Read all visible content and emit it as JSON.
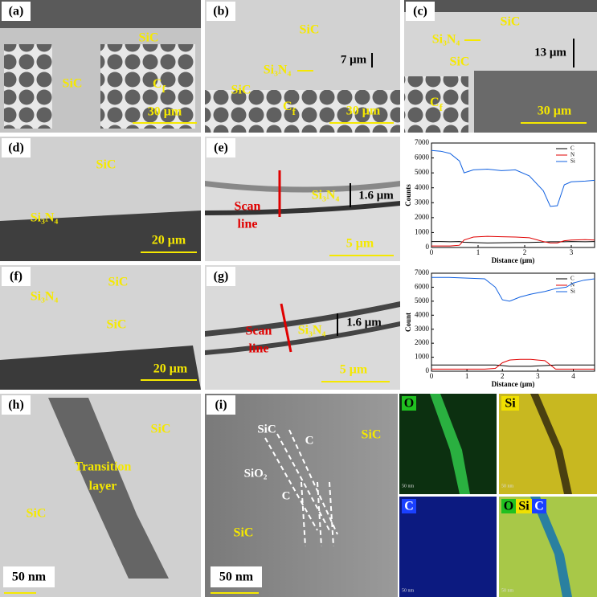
{
  "panels": {
    "a": {
      "label": "(a)",
      "sic_top": "SiC",
      "sic_left": "SiC",
      "cf": "C",
      "cf_sub": "f",
      "scale": "30 μm"
    },
    "b": {
      "label": "(b)",
      "sic": "SiC",
      "si3n4": "Si₃N₄",
      "thickness": "7 μm",
      "sic_left": "SiC",
      "cf": "C",
      "cf_sub": "f",
      "scale": "30 μm"
    },
    "c": {
      "label": "(c)",
      "sic_top": "SiC",
      "si3n4": "Si₃N₄",
      "sic": "SiC",
      "thickness": "13 μm",
      "cf": "C",
      "cf_sub": "f",
      "scale": "30 μm"
    },
    "d": {
      "label": "(d)",
      "sic": "SiC",
      "si3n4": "Si₃N₄",
      "scale": "20 μm"
    },
    "e": {
      "label": "(e)",
      "scan": "Scan",
      "line": "line",
      "si3n4": "Si₃N₄",
      "thickness": "1.6 μm",
      "scale": "5 μm"
    },
    "f": {
      "label": "(f)",
      "si3n4": "Si₃N₄",
      "sic_top": "SiC",
      "sic": "SiC",
      "scale": "20 μm"
    },
    "g": {
      "label": "(g)",
      "scan": "Scan",
      "line": "line",
      "si3n4": "Si₃N₄",
      "thickness": "1.6 μm",
      "scale": "5 μm"
    },
    "h": {
      "label": "(h)",
      "sic_right": "SiC",
      "transition": "Transition",
      "layer": "layer",
      "sic_left": "SiC",
      "scale": "50 nm"
    },
    "i": {
      "label": "(i)",
      "sic_top_left": "SiC",
      "c_top": "C",
      "sic_right": "SiC",
      "sio2": "SiO₂",
      "c_bottom": "C",
      "sic_bottom": "SiC",
      "scale": "50 nm"
    },
    "maps": {
      "o": "O",
      "si": "Si",
      "c": "C",
      "overlay": [
        "O",
        "Si",
        "C"
      ],
      "map_scales": [
        "50 nm",
        "50 nm",
        "50 nm",
        "50 nm"
      ]
    }
  },
  "chart_data": [
    {
      "type": "line",
      "xlabel": "Distance (μm)",
      "ylabel": "Counts",
      "xlim": [
        0,
        3.5
      ],
      "ylim": [
        0,
        7000
      ],
      "xticks": [
        0,
        1,
        2,
        3
      ],
      "yticks": [
        0,
        1000,
        2000,
        3000,
        4000,
        5000,
        6000,
        7000
      ],
      "legend": "upper right",
      "x": [
        0,
        0.2,
        0.4,
        0.6,
        0.7,
        0.9,
        1.2,
        1.5,
        1.8,
        2.1,
        2.4,
        2.55,
        2.7,
        2.85,
        3.0,
        3.3,
        3.5
      ],
      "series": [
        {
          "name": "C",
          "color": "#000000",
          "values": [
            400,
            400,
            380,
            400,
            350,
            330,
            300,
            320,
            330,
            340,
            360,
            380,
            380,
            380,
            400,
            380,
            400
          ]
        },
        {
          "name": "N",
          "color": "#e00000",
          "values": [
            100,
            100,
            100,
            150,
            500,
            700,
            750,
            720,
            700,
            650,
            400,
            300,
            300,
            450,
            500,
            520,
            500
          ]
        },
        {
          "name": "Si",
          "color": "#1060e0",
          "values": [
            6500,
            6450,
            6300,
            5800,
            5000,
            5200,
            5250,
            5150,
            5200,
            4800,
            3800,
            2750,
            2800,
            4200,
            4400,
            4450,
            4500
          ]
        }
      ]
    },
    {
      "type": "line",
      "xlabel": "Distance (μm)",
      "ylabel": "Count",
      "xlim": [
        0,
        4.6
      ],
      "ylim": [
        0,
        7000
      ],
      "xticks": [
        0,
        1,
        2,
        3,
        4
      ],
      "yticks": [
        0,
        1000,
        2000,
        3000,
        4000,
        5000,
        6000,
        7000
      ],
      "legend": "upper right",
      "x": [
        0,
        0.5,
        1,
        1.5,
        1.8,
        2,
        2.2,
        2.5,
        2.8,
        3,
        3.2,
        3.5,
        3.8,
        4,
        4.3,
        4.6
      ],
      "series": [
        {
          "name": "C",
          "color": "#000000",
          "values": [
            450,
            450,
            450,
            450,
            450,
            400,
            350,
            350,
            350,
            380,
            400,
            450,
            450,
            450,
            450,
            450
          ]
        },
        {
          "name": "N",
          "color": "#e00000",
          "values": [
            150,
            150,
            150,
            150,
            200,
            600,
            800,
            850,
            850,
            800,
            750,
            150,
            150,
            150,
            150,
            150
          ]
        },
        {
          "name": "Si",
          "color": "#1060e0",
          "values": [
            6700,
            6700,
            6650,
            6600,
            6000,
            5100,
            5000,
            5300,
            5500,
            5600,
            5700,
            5900,
            6000,
            6300,
            6500,
            6600
          ]
        }
      ]
    }
  ]
}
